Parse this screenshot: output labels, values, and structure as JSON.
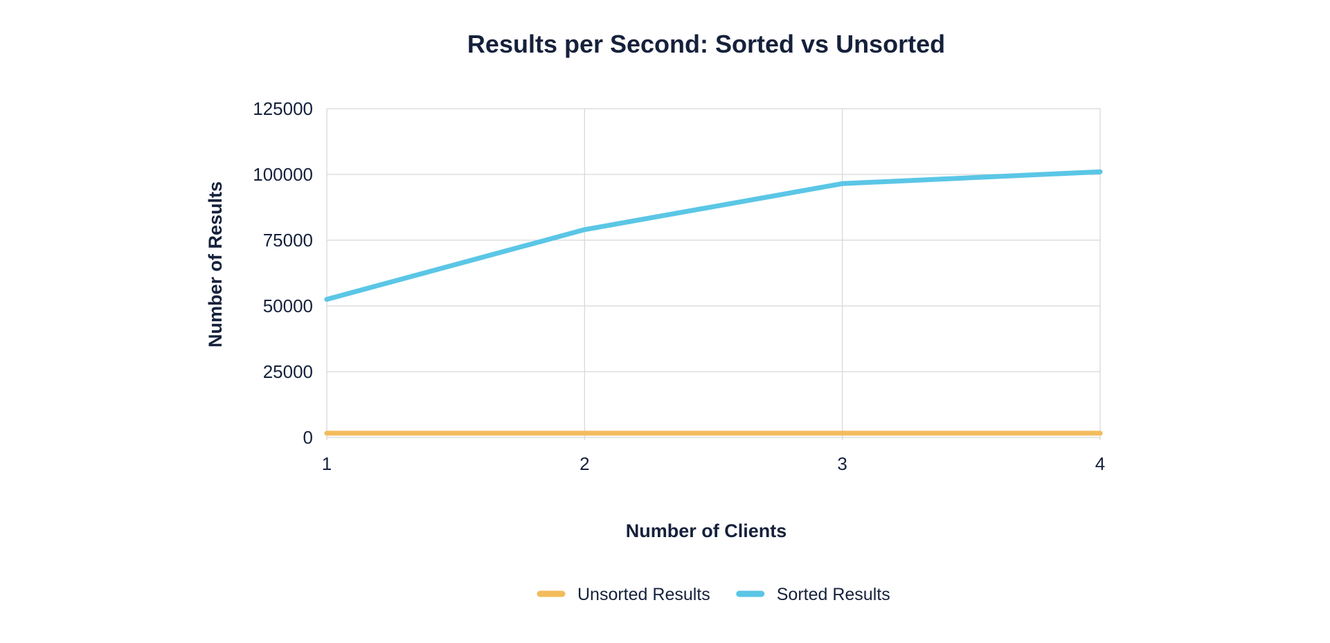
{
  "chart_data": {
    "type": "line",
    "title": "Results per Second: Sorted vs Unsorted",
    "xlabel": "Number of Clients",
    "ylabel": "Number of Results",
    "x": [
      1,
      2,
      3,
      4
    ],
    "x_tick_labels": [
      "1",
      "2",
      "3",
      "4"
    ],
    "ylim": [
      0,
      125000
    ],
    "y_ticks": [
      0,
      25000,
      50000,
      75000,
      100000,
      125000
    ],
    "y_tick_labels": [
      "0",
      "25000",
      "50000",
      "75000",
      "100000",
      "125000"
    ],
    "grid": true,
    "legend_position": "bottom",
    "series": [
      {
        "name": "Unsorted Results",
        "color": "#f2bb5c",
        "values": [
          1600,
          1600,
          1600,
          1600
        ]
      },
      {
        "name": "Sorted Results",
        "color": "#5bc6e6",
        "values": [
          52500,
          79000,
          96500,
          101000
        ]
      }
    ]
  }
}
